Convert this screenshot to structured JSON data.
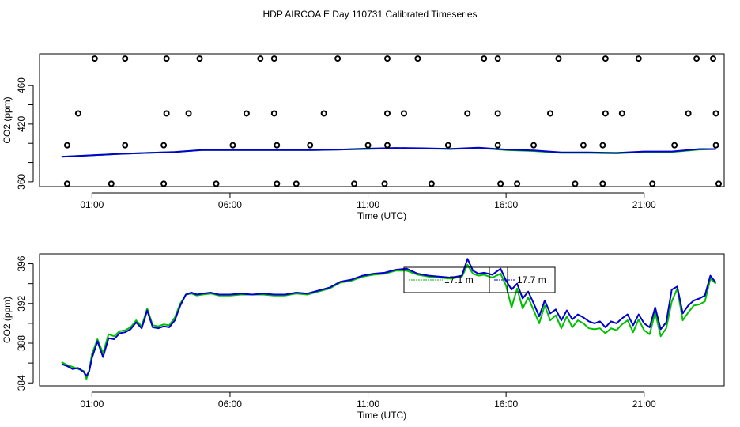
{
  "figure": {
    "title": "HDP AIRCOA E  Day 110731  Calibrated Timeseries"
  },
  "colors": {
    "green_series": "#00c000",
    "blue_series": "#0000d0",
    "marker_black": "#000000"
  },
  "chart_data": [
    {
      "type": "line",
      "title": "",
      "xlabel": "Time (UTC)",
      "ylabel": "CO2 (ppm)",
      "x_unit": "hours UTC",
      "xlim": [
        -0.9,
        23.9
      ],
      "ylim": [
        355,
        493
      ],
      "x_ticks": [
        1,
        6,
        11,
        16,
        21
      ],
      "x_tick_labels": [
        "01:00",
        "06:00",
        "11:00",
        "16:00",
        "21:00"
      ],
      "y_ticks": [
        360,
        380,
        400,
        420,
        440,
        460
      ],
      "y_tick_labels": [
        "360",
        "",
        "",
        "420",
        "",
        "460"
      ],
      "legend": "none",
      "series": [
        {
          "color": "green",
          "x": [
            -0.1,
            1,
            2,
            3,
            4,
            5,
            6,
            7,
            8,
            9,
            10,
            11,
            12,
            13,
            14,
            15,
            16,
            17,
            18,
            19,
            20,
            21,
            22,
            23,
            23.6
          ],
          "values": [
            386,
            387.5,
            389,
            390,
            391,
            393,
            393,
            393,
            393,
            393,
            393.5,
            394,
            395,
            394.5,
            394,
            395,
            393,
            392,
            390,
            390,
            389.5,
            391,
            391,
            393.5,
            394
          ]
        },
        {
          "color": "blue",
          "x": [
            -0.1,
            1,
            2,
            3,
            4,
            5,
            6,
            7,
            8,
            9,
            10,
            11,
            12,
            13,
            14,
            15,
            16,
            17,
            18,
            19,
            20,
            21,
            22,
            23,
            23.6
          ],
          "values": [
            386,
            387.5,
            389,
            390,
            391,
            393,
            393,
            393,
            393,
            393,
            393.5,
            394.5,
            395.2,
            394.8,
            394.3,
            395.4,
            393.5,
            392.5,
            390.5,
            390.5,
            390,
            391.5,
            391.5,
            394,
            394
          ]
        }
      ],
      "markers": {
        "style": "open-circle",
        "x": [
          1.1,
          2.2,
          3.7,
          4.9,
          7.1,
          7.6,
          9.9,
          11.7,
          12.8,
          15.2,
          15.7,
          17.9,
          19.6,
          20.8,
          22.9,
          23.5,
          0.5,
          3.7,
          4.5,
          6.6,
          7.6,
          9.4,
          11.7,
          12.3,
          14.6,
          15.7,
          17.6,
          19.6,
          20.2,
          22.6,
          23.6,
          0.1,
          2.2,
          3.6,
          6.1,
          7.7,
          8.9,
          11.0,
          11.7,
          13.9,
          15.7,
          17.0,
          18.8,
          19.5,
          22.1,
          23.6,
          0.1,
          1.7,
          3.6,
          5.5,
          7.7,
          8.4,
          10.5,
          11.6,
          13.3,
          15.8,
          16.4,
          18.5,
          19.5,
          21.3,
          23.7
        ],
        "y": [
          488,
          488,
          488,
          488,
          488,
          488,
          488,
          488,
          488,
          488,
          488,
          488,
          488,
          488,
          488,
          488,
          431,
          431,
          431,
          431,
          431,
          431,
          431,
          431,
          431,
          431,
          431,
          431,
          431,
          431,
          431,
          398,
          398,
          398,
          398,
          398,
          398,
          398,
          398,
          398,
          398,
          398,
          398,
          398,
          398,
          398,
          358,
          358,
          358,
          358,
          358,
          358,
          358,
          358,
          358,
          358,
          358,
          358,
          358,
          358,
          358
        ]
      }
    },
    {
      "type": "line",
      "title": "",
      "xlabel": "Time (UTC)",
      "ylabel": "CO2 (ppm)",
      "x_unit": "hours UTC",
      "xlim": [
        -0.9,
        23.9
      ],
      "ylim": [
        383.7,
        397
      ],
      "x_ticks": [
        1,
        6,
        11,
        16,
        21
      ],
      "x_tick_labels": [
        "01:00",
        "06:00",
        "11:00",
        "16:00",
        "21:00"
      ],
      "y_ticks": [
        384,
        386,
        388,
        390,
        392,
        394,
        396
      ],
      "y_tick_labels": [
        "384",
        "",
        "388",
        "",
        "392",
        "",
        "396"
      ],
      "legend": "top-center",
      "series": [
        {
          "name": "17.1 m",
          "color": "green",
          "x": [
            -0.1,
            0.1,
            0.3,
            0.5,
            0.7,
            0.8,
            0.9,
            1.0,
            1.2,
            1.4,
            1.6,
            1.8,
            2.0,
            2.2,
            2.4,
            2.6,
            2.8,
            3.0,
            3.2,
            3.4,
            3.6,
            3.8,
            4.0,
            4.2,
            4.4,
            4.6,
            4.8,
            5.0,
            5.3,
            5.6,
            6.0,
            6.4,
            6.8,
            7.2,
            7.6,
            8.0,
            8.4,
            8.8,
            9.2,
            9.6,
            10.0,
            10.4,
            10.8,
            11.2,
            11.6,
            12.0,
            12.4,
            12.8,
            13.2,
            13.6,
            14.0,
            14.4,
            14.6,
            14.8,
            15.0,
            15.2,
            15.5,
            15.8,
            16.0,
            16.2,
            16.4,
            16.6,
            16.8,
            17.0,
            17.2,
            17.4,
            17.6,
            17.8,
            18.0,
            18.2,
            18.4,
            18.6,
            18.8,
            19.0,
            19.2,
            19.4,
            19.6,
            19.8,
            20.0,
            20.2,
            20.4,
            20.6,
            20.8,
            21.0,
            21.2,
            21.4,
            21.6,
            21.8,
            22.0,
            22.2,
            22.4,
            22.6,
            22.8,
            23.0,
            23.2,
            23.4,
            23.6
          ],
          "values": [
            386.1,
            385.8,
            385.6,
            385.4,
            385.2,
            384.4,
            385.3,
            386.9,
            388.4,
            387.0,
            388.9,
            388.7,
            389.2,
            389.3,
            389.6,
            390.3,
            389.7,
            391.5,
            389.8,
            389.7,
            389.9,
            389.8,
            390.6,
            392.0,
            392.9,
            393.0,
            392.8,
            392.9,
            393.0,
            392.8,
            392.8,
            392.9,
            392.9,
            392.9,
            392.8,
            392.8,
            393.0,
            392.9,
            393.2,
            393.5,
            394.1,
            394.3,
            394.7,
            394.9,
            395.0,
            395.3,
            395.3,
            394.9,
            394.7,
            394.6,
            394.5,
            394.7,
            395.9,
            395.0,
            394.8,
            394.9,
            394.6,
            395.0,
            393.8,
            391.6,
            393.5,
            391.5,
            392.6,
            391.3,
            390.0,
            391.8,
            390.3,
            390.8,
            389.5,
            390.7,
            389.6,
            390.3,
            390.0,
            389.5,
            389.4,
            389.5,
            389.0,
            389.5,
            389.3,
            389.9,
            390.3,
            389.1,
            390.4,
            389.3,
            388.9,
            391.1,
            388.7,
            389.5,
            392.2,
            393.5,
            390.3,
            391.1,
            391.8,
            391.9,
            392.2,
            394.5,
            394.0
          ]
        },
        {
          "name": "17.7 m",
          "color": "blue",
          "x": [
            -0.1,
            0.1,
            0.3,
            0.5,
            0.7,
            0.8,
            0.9,
            1.0,
            1.2,
            1.4,
            1.6,
            1.8,
            2.0,
            2.2,
            2.4,
            2.6,
            2.8,
            3.0,
            3.2,
            3.4,
            3.6,
            3.8,
            4.0,
            4.2,
            4.4,
            4.6,
            4.8,
            5.0,
            5.3,
            5.6,
            6.0,
            6.4,
            6.8,
            7.2,
            7.6,
            8.0,
            8.4,
            8.8,
            9.2,
            9.6,
            10.0,
            10.4,
            10.8,
            11.2,
            11.6,
            12.0,
            12.4,
            12.8,
            13.2,
            13.6,
            14.0,
            14.4,
            14.6,
            14.8,
            15.0,
            15.2,
            15.5,
            15.8,
            16.0,
            16.2,
            16.4,
            16.6,
            16.8,
            17.0,
            17.2,
            17.4,
            17.6,
            17.8,
            18.0,
            18.2,
            18.4,
            18.6,
            18.8,
            19.0,
            19.2,
            19.4,
            19.6,
            19.8,
            20.0,
            20.2,
            20.4,
            20.6,
            20.8,
            21.0,
            21.2,
            21.4,
            21.6,
            21.8,
            22.0,
            22.2,
            22.4,
            22.6,
            22.8,
            23.0,
            23.2,
            23.4,
            23.6
          ],
          "values": [
            385.9,
            385.7,
            385.4,
            385.5,
            385.1,
            384.7,
            385.2,
            386.5,
            388.2,
            386.6,
            388.5,
            388.4,
            389.0,
            389.1,
            389.4,
            390.1,
            389.5,
            391.3,
            389.6,
            389.5,
            389.7,
            389.6,
            390.3,
            391.8,
            392.9,
            393.1,
            392.9,
            393.0,
            393.1,
            392.9,
            392.9,
            393.0,
            392.9,
            393.0,
            392.9,
            392.9,
            393.1,
            393.0,
            393.3,
            393.6,
            394.2,
            394.4,
            394.8,
            395.0,
            395.1,
            395.4,
            395.5,
            395.0,
            394.8,
            394.7,
            394.6,
            394.8,
            396.5,
            395.3,
            395.0,
            395.1,
            394.9,
            395.5,
            394.3,
            393.4,
            394.0,
            392.5,
            393.2,
            392.0,
            390.7,
            392.3,
            391.0,
            391.4,
            390.3,
            391.3,
            390.4,
            390.9,
            390.6,
            390.2,
            390.0,
            390.2,
            389.6,
            390.2,
            390.0,
            390.5,
            390.9,
            389.8,
            390.9,
            390.0,
            389.6,
            391.6,
            389.4,
            390.1,
            393.4,
            393.7,
            391.0,
            391.8,
            392.3,
            392.5,
            392.8,
            394.8,
            394.1
          ]
        }
      ]
    }
  ]
}
